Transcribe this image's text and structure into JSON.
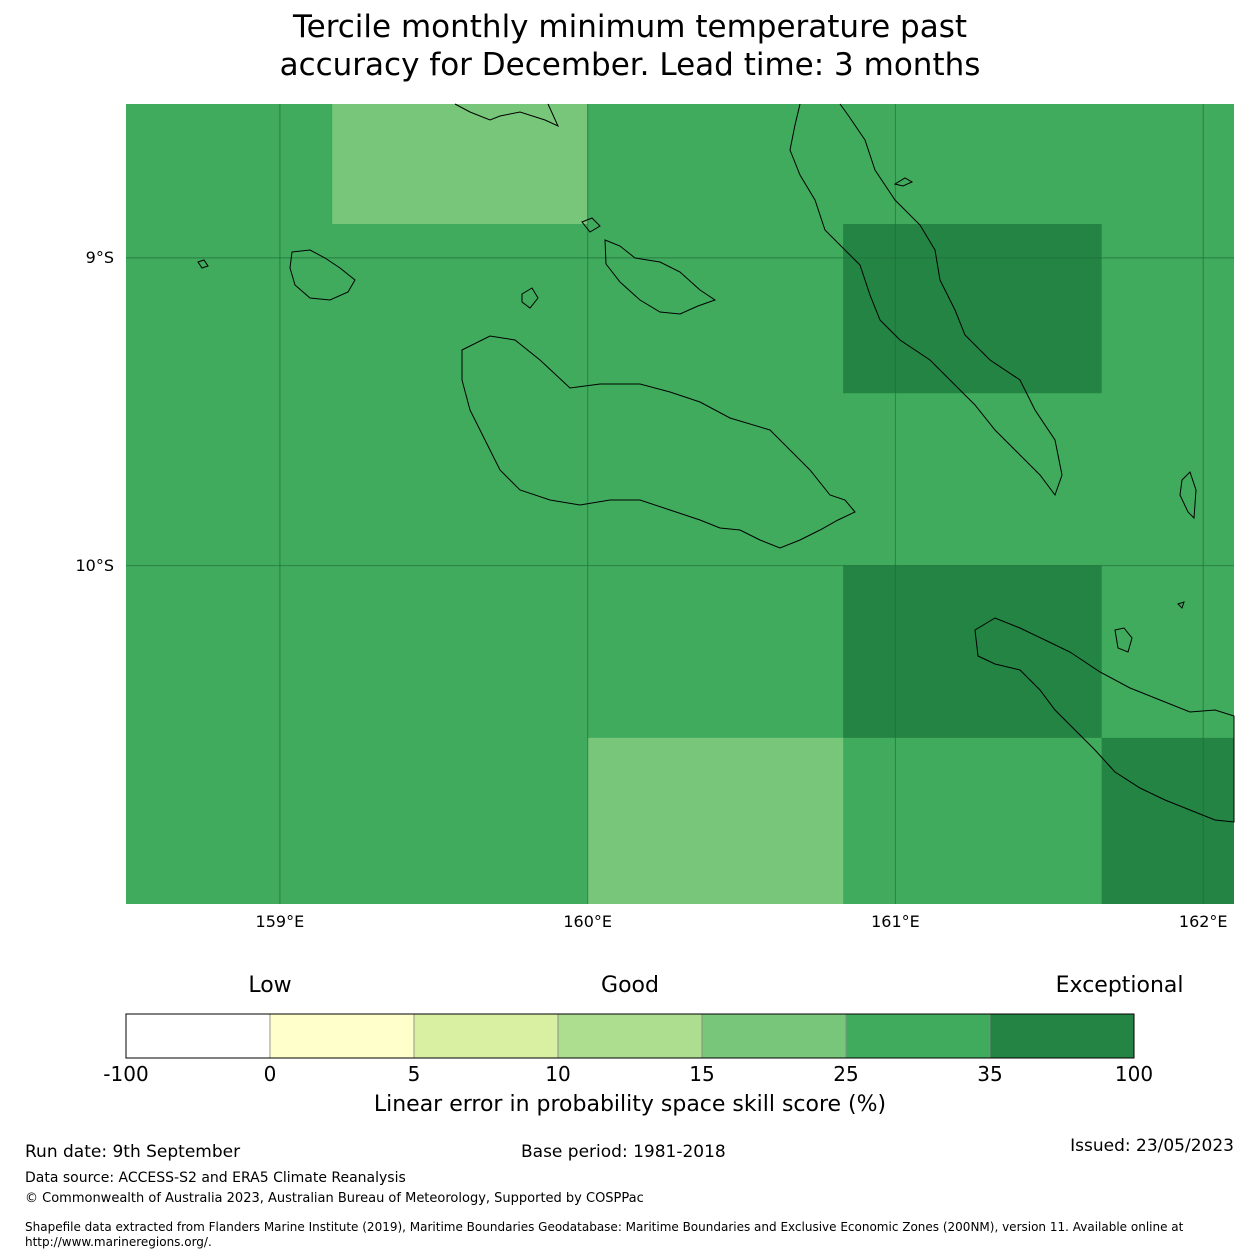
{
  "title": {
    "line1": "Tercile monthly minimum temperature past",
    "line2": "accuracy for December. Lead time: 3 months"
  },
  "map": {
    "lon_range": [
      158.5,
      162.1
    ],
    "lat_range": [
      -11.1,
      -8.5
    ],
    "lon_ticks": [
      {
        "value": 159,
        "label": "159°E"
      },
      {
        "value": 160,
        "label": "160°E"
      },
      {
        "value": 161,
        "label": "161°E"
      },
      {
        "value": 162,
        "label": "162°E"
      }
    ],
    "lat_ticks": [
      {
        "value": -9,
        "label": "9°S"
      },
      {
        "value": -10,
        "label": "10°S"
      }
    ],
    "background_class": 5,
    "cells": [
      {
        "lon0": 159.17,
        "lon1": 160.0,
        "lat0": -8.89,
        "lat1": -8.5,
        "class": 4
      },
      {
        "lon0": 160.83,
        "lon1": 161.67,
        "lat0": -9.44,
        "lat1": -8.89,
        "class": 6
      },
      {
        "lon0": 160.83,
        "lon1": 161.67,
        "lat0": -10.56,
        "lat1": -10.0,
        "class": 6
      },
      {
        "lon0": 160.0,
        "lon1": 160.83,
        "lat0": -11.1,
        "lat1": -10.56,
        "class": 4
      },
      {
        "lon0": 161.67,
        "lon1": 162.1,
        "lat0": -11.1,
        "lat1": -10.56,
        "class": 6
      }
    ]
  },
  "legend": {
    "categories": [
      {
        "label": "Low",
        "position": 1
      },
      {
        "label": "Good",
        "position": 3.5
      },
      {
        "label": "Exceptional",
        "position": 6.9
      }
    ],
    "boundaries": [
      "-100",
      "0",
      "5",
      "10",
      "15",
      "25",
      "35",
      "100"
    ],
    "colors": [
      "#ffffff",
      "#ffffcc",
      "#d9f0a3",
      "#addd8e",
      "#78c679",
      "#41ab5d",
      "#238443"
    ],
    "label": "Linear error in probability space skill score (%)"
  },
  "footer": {
    "run_date": "Run date: 9th September",
    "base_period": "Base period: 1981-2018",
    "issued": "Issued: 23/05/2023",
    "data_source": "Data source: ACCESS-S2 and ERA5 Climate Reanalysis",
    "copyright": "© Commonwealth of Australia 2023, Australian Bureau of Meteorology, Supported by COSPPac",
    "shapefile": "Shapefile data extracted from Flanders Marine Institute (2019), Maritime Boundaries Geodatabase: Maritime Boundaries and Exclusive Economic Zones (200NM), version 11. Available online at http://www.marineregions.org/."
  }
}
